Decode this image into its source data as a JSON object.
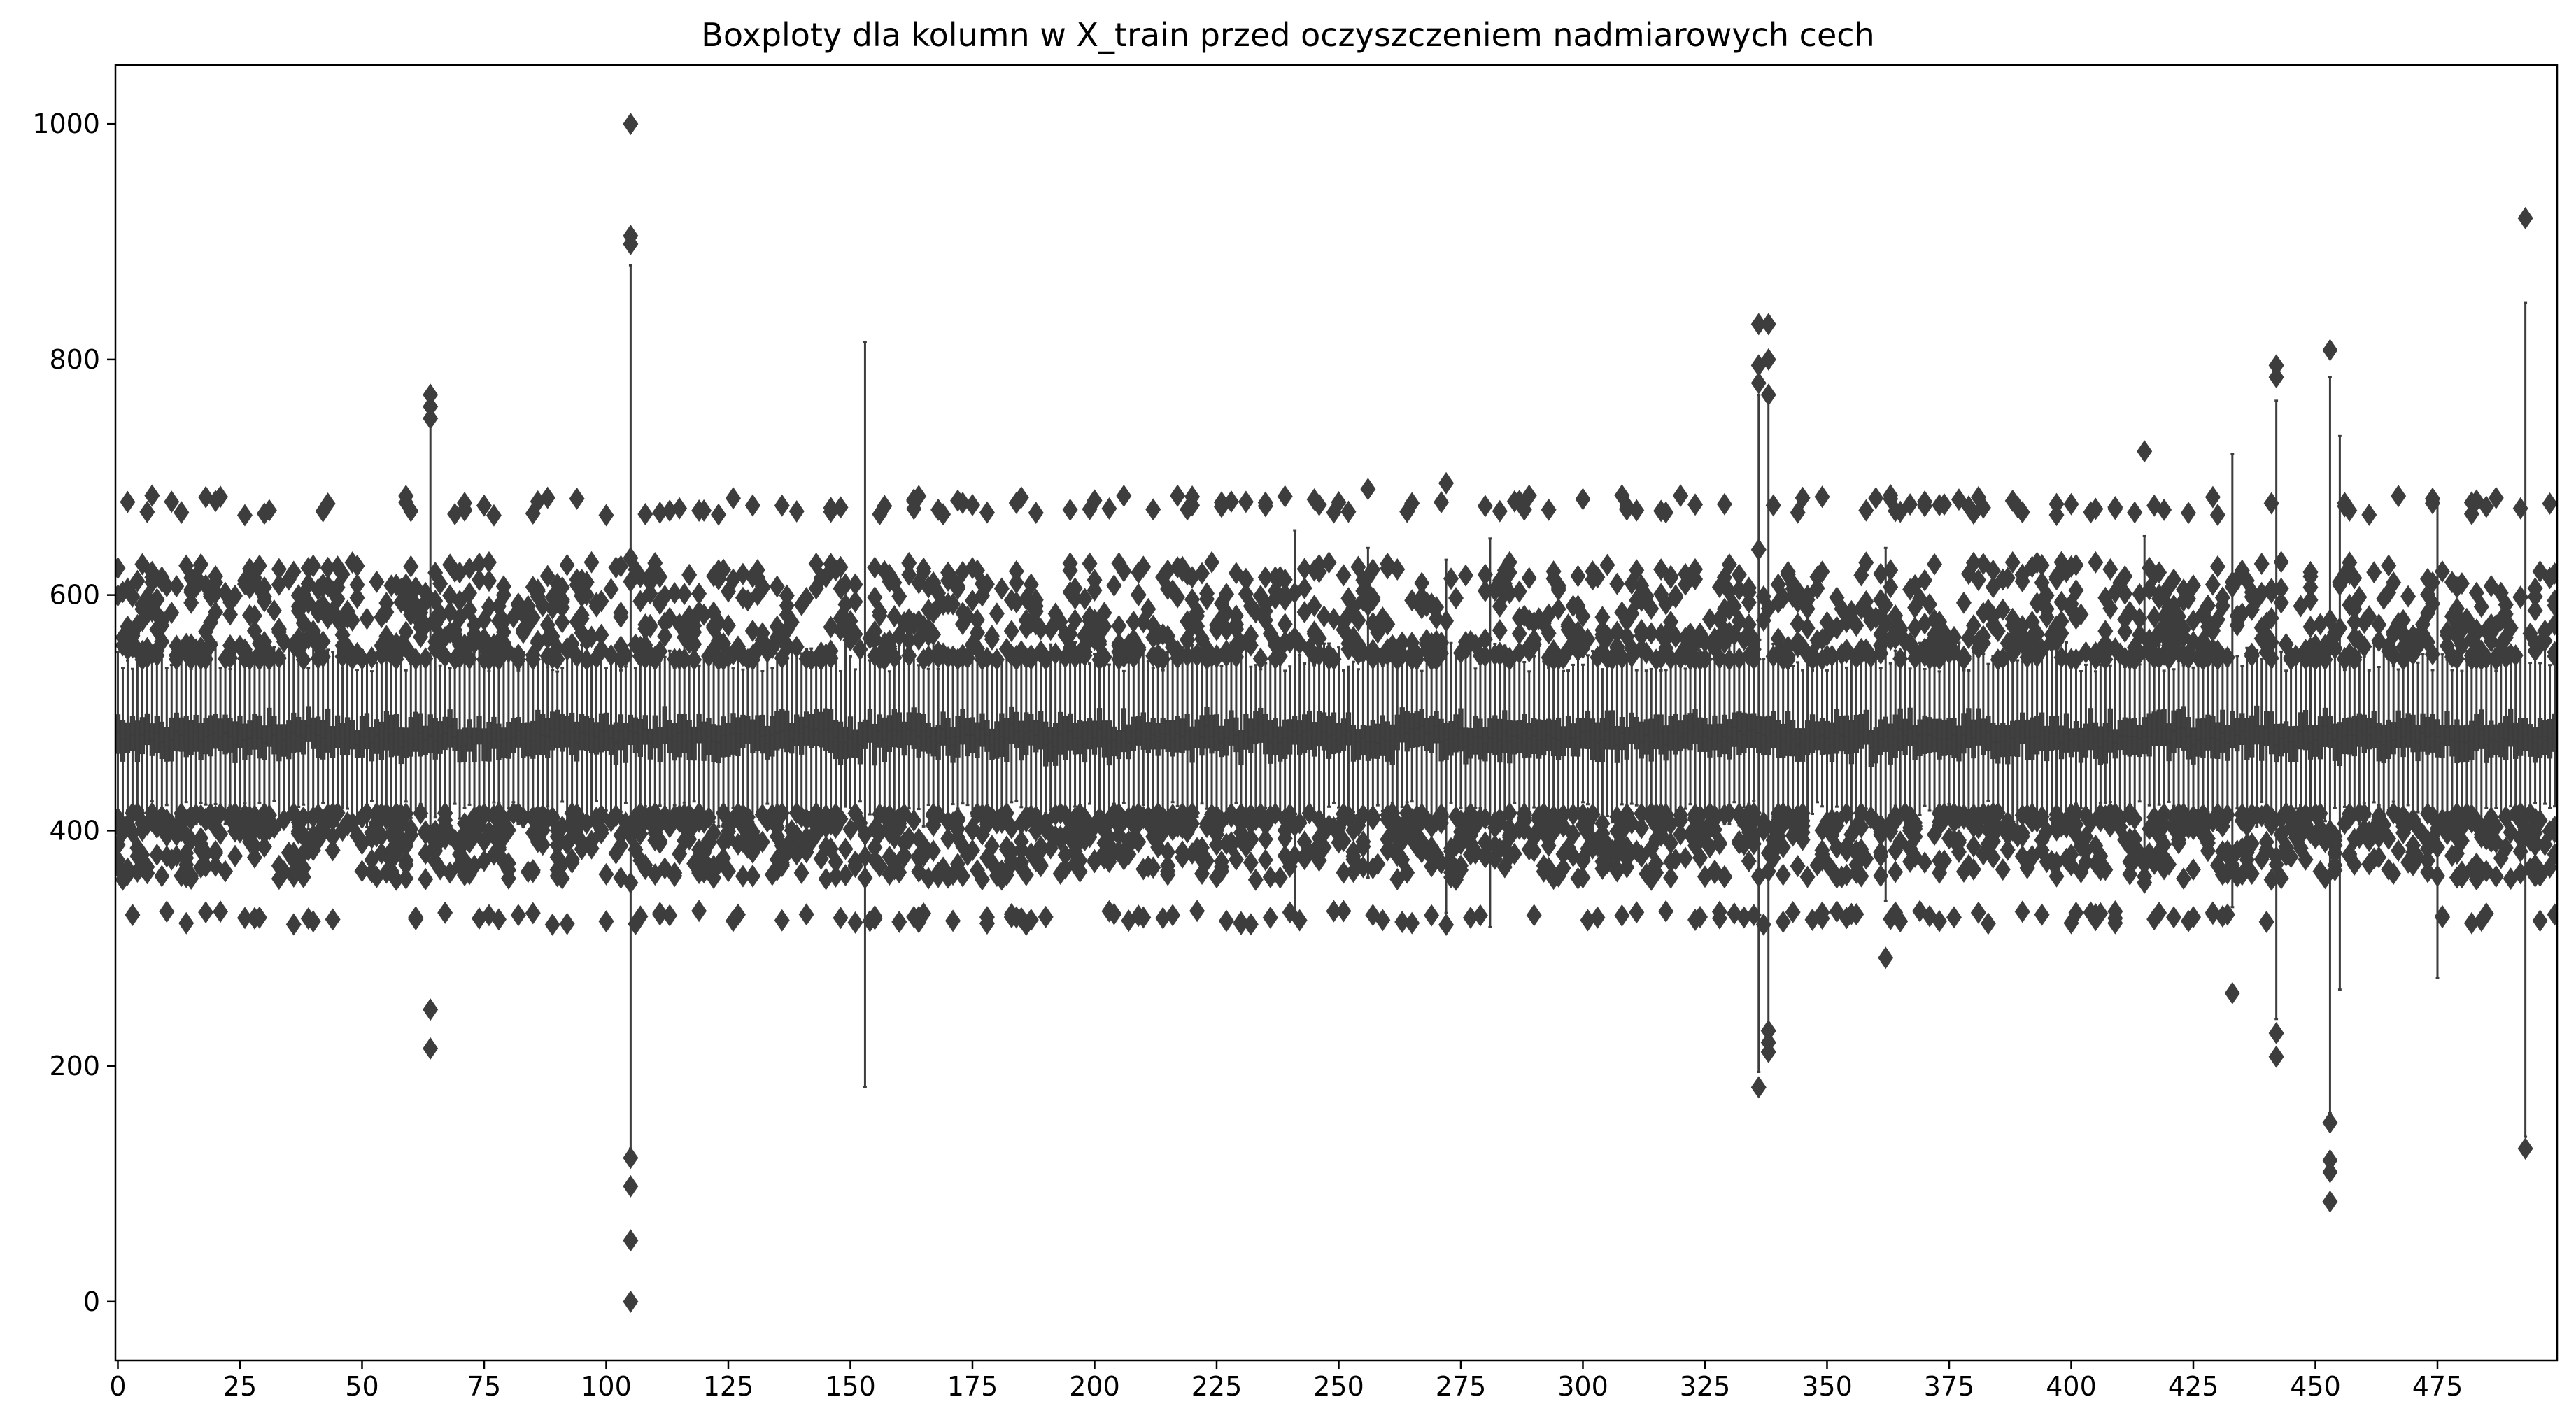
{
  "chart_data": {
    "type": "boxplot",
    "title": "Boxploty dla kolumn w X_train przed oczyszczeniem nadmiarowych cech",
    "xlabel": "",
    "ylabel": "",
    "n_columns": 500,
    "xlim": [
      -0.5,
      499.5
    ],
    "ylim": [
      -50,
      1050
    ],
    "x_ticks": [
      0,
      25,
      50,
      75,
      100,
      125,
      150,
      175,
      200,
      225,
      250,
      275,
      300,
      325,
      350,
      375,
      400,
      425,
      450,
      475
    ],
    "x_tick_labels": [
      "0",
      "25",
      "50",
      "75",
      "100",
      "125",
      "150",
      "175",
      "200",
      "225",
      "250",
      "275",
      "300",
      "325",
      "350",
      "375",
      "400",
      "425",
      "450",
      "475"
    ],
    "y_ticks": [
      0,
      200,
      400,
      600,
      800,
      1000
    ],
    "y_tick_labels": [
      "0",
      "200",
      "400",
      "600",
      "800",
      "1000"
    ],
    "grid": false,
    "colors": {
      "box": "#3d3d3d",
      "box_fill": "#404040",
      "outlier": "#3d3d3d",
      "axis": "#000000"
    },
    "typical_box": {
      "q1": 465,
      "median": 480,
      "q3": 495,
      "whisker_low": 425,
      "whisker_high": 535
    },
    "notable_columns": [
      {
        "column": 64,
        "whisker_low": 385,
        "whisker_high": 750,
        "outliers": [
          770,
          760,
          750,
          248,
          215
        ]
      },
      {
        "column": 105,
        "whisker_low": 130,
        "whisker_high": 880,
        "outliers": [
          1000,
          905,
          898,
          122,
          98,
          52,
          0
        ]
      },
      {
        "column": 153,
        "whisker_low": 182,
        "whisker_high": 815,
        "outliers": []
      },
      {
        "column": 241,
        "whisker_low": 332,
        "whisker_high": 655,
        "outliers": []
      },
      {
        "column": 256,
        "whisker_low": 360,
        "whisker_high": 640,
        "outliers": [
          690
        ]
      },
      {
        "column": 272,
        "whisker_low": 330,
        "whisker_high": 630,
        "outliers": [
          695,
          320
        ]
      },
      {
        "column": 281,
        "whisker_low": 318,
        "whisker_high": 648,
        "outliers": []
      },
      {
        "column": 336,
        "whisker_low": 195,
        "whisker_high": 770,
        "outliers": [
          830,
          795,
          780,
          182
        ]
      },
      {
        "column": 338,
        "whisker_low": 235,
        "whisker_high": 765,
        "outliers": [
          830,
          800,
          770,
          230,
          220,
          212
        ]
      },
      {
        "column": 362,
        "whisker_low": 340,
        "whisker_high": 640,
        "outliers": [
          292
        ]
      },
      {
        "column": 415,
        "whisker_low": 380,
        "whisker_high": 650,
        "outliers": [
          722
        ]
      },
      {
        "column": 433,
        "whisker_low": 335,
        "whisker_high": 720,
        "outliers": [
          262
        ]
      },
      {
        "column": 442,
        "whisker_low": 240,
        "whisker_high": 765,
        "outliers": [
          795,
          785,
          228,
          208
        ]
      },
      {
        "column": 453,
        "whisker_low": 160,
        "whisker_high": 785,
        "outliers": [
          808,
          152,
          120,
          110,
          85
        ]
      },
      {
        "column": 455,
        "whisker_low": 265,
        "whisker_high": 735,
        "outliers": []
      },
      {
        "column": 475,
        "whisker_low": 275,
        "whisker_high": 680,
        "outliers": []
      },
      {
        "column": 493,
        "whisker_low": 140,
        "whisker_high": 848,
        "outliers": [
          920,
          130
        ]
      }
    ]
  }
}
